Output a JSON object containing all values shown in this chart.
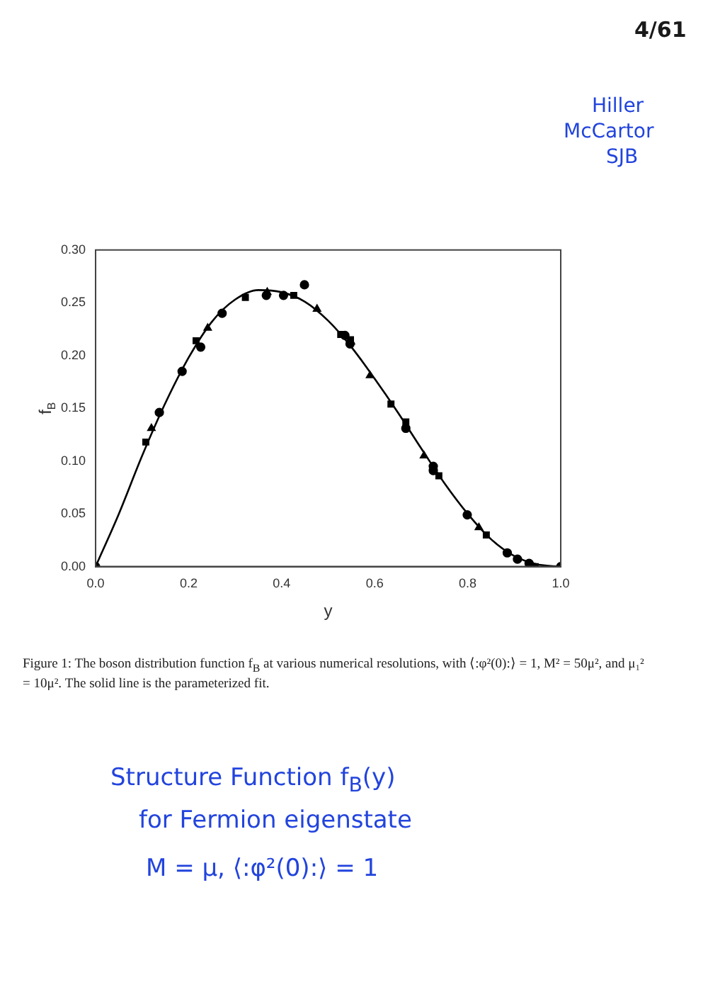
{
  "chart_data": {
    "type": "scatter",
    "xlabel": "y",
    "ylabel": "f$_{B}$",
    "xlim": [
      0,
      1
    ],
    "ylim": [
      0,
      0.3
    ],
    "xticks": [
      {
        "value": 0,
        "label": "0.0"
      },
      {
        "value": 0.2,
        "label": "0.2"
      },
      {
        "value": 0.4,
        "label": "0.4"
      },
      {
        "value": 0.6,
        "label": "0.6"
      },
      {
        "value": 0.8,
        "label": "0.8"
      },
      {
        "value": 1,
        "label": "1.0"
      }
    ],
    "yticks": [
      {
        "value": 0,
        "label": "0.00"
      },
      {
        "value": 0.05,
        "label": "0.05"
      },
      {
        "value": 0.1,
        "label": "0.10"
      },
      {
        "value": 0.15,
        "label": "0.15"
      },
      {
        "value": 0.2,
        "label": "0.20"
      },
      {
        "value": 0.25,
        "label": "0.25"
      },
      {
        "value": 0.3,
        "label": "0.30"
      }
    ],
    "grid": false,
    "legend": false,
    "series": [
      {
        "type": "line",
        "color": "#000000",
        "marker": "none",
        "x": [
          0,
          0.05,
          0.1,
          0.15,
          0.2,
          0.25,
          0.3,
          0.35,
          0.4,
          0.45,
          0.5,
          0.55,
          0.6,
          0.65,
          0.7,
          0.75,
          0.8,
          0.85,
          0.9,
          0.95,
          1
        ],
        "values": [
          0,
          0.05,
          0.105,
          0.155,
          0.198,
          0.232,
          0.253,
          0.262,
          0.26,
          0.251,
          0.233,
          0.208,
          0.178,
          0.146,
          0.112,
          0.079,
          0.05,
          0.026,
          0.01,
          0.002,
          0
        ]
      },
      {
        "color": "#000000",
        "marker": "square",
        "x": [
          0.108,
          0.216,
          0.322,
          0.426,
          0.527,
          0.548,
          0.635,
          0.667,
          0.738,
          0.84,
          0.945
        ],
        "values": [
          0.118,
          0.214,
          0.255,
          0.257,
          0.22,
          0.215,
          0.154,
          0.137,
          0.086,
          0.03,
          0
        ]
      },
      {
        "color": "#000000",
        "marker": "circle",
        "x": [
          0,
          0.137,
          0.272,
          0.404,
          0.536,
          0.667,
          0.726,
          0.799,
          0.932,
          1
        ],
        "values": [
          0,
          0.146,
          0.24,
          0.257,
          0.219,
          0.131,
          0.095,
          0.049,
          0.003,
          0
        ]
      },
      {
        "color": "#000000",
        "marker": "circle",
        "x": [
          0.186,
          0.226,
          0.367,
          0.449,
          0.547,
          0.726,
          0.885,
          0.907
        ],
        "values": [
          0.185,
          0.208,
          0.257,
          0.267,
          0.211,
          0.091,
          0.013,
          0.007
        ]
      },
      {
        "color": "#000000",
        "marker": "triangle",
        "x": [
          0.12,
          0.241,
          0.369,
          0.476,
          0.549,
          0.59,
          0.706,
          0.824
        ],
        "values": [
          0.131,
          0.226,
          0.26,
          0.244,
          0.213,
          0.181,
          0.105,
          0.037
        ]
      }
    ],
    "annotations": [
      "4/61",
      "Hiller",
      "McCartor",
      "SJB",
      "Figure 1: The boson distribution function f$_{B}$ at various numerical resolutions, with ⟨:φ²(0):⟩ = 1, M² = 50μ², and μ₁² = 10μ². The solid line is the parameterized fit.",
      "Structure Function f$_{B}$(y)",
      "for Fermion eigenstate",
      "M = μ,  ⟨:φ²(0):⟩ = 1"
    ]
  }
}
